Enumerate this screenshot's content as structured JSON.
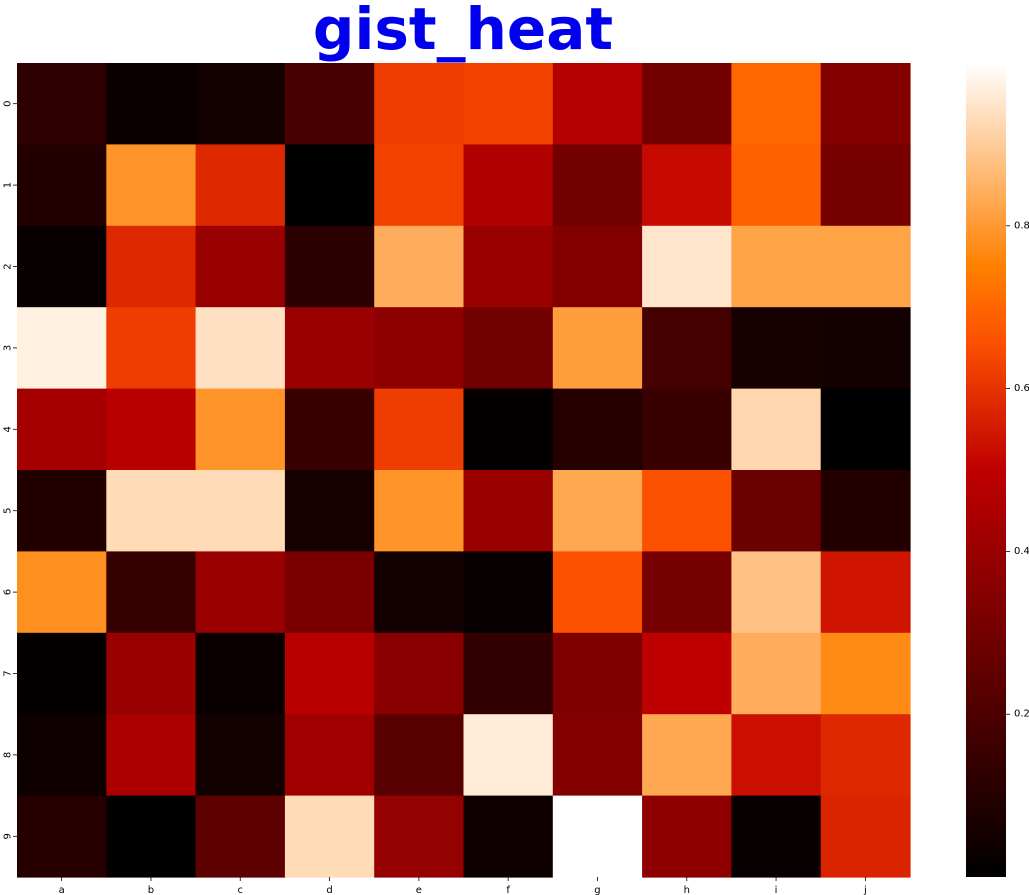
{
  "chart_data": {
    "type": "heatmap",
    "title": "gist_heat",
    "xlabel": "",
    "ylabel": "",
    "colormap": "gist_heat",
    "x_categories": [
      "a",
      "b",
      "c",
      "d",
      "e",
      "f",
      "g",
      "h",
      "i",
      "j"
    ],
    "y_categories": [
      "0",
      "1",
      "2",
      "3",
      "4",
      "5",
      "6",
      "7",
      "8",
      "9"
    ],
    "values": [
      [
        0.12,
        0.03,
        0.05,
        0.19,
        0.62,
        0.63,
        0.47,
        0.3,
        0.7,
        0.34
      ],
      [
        0.09,
        0.79,
        0.58,
        0.0,
        0.63,
        0.46,
        0.3,
        0.52,
        0.69,
        0.31
      ],
      [
        0.02,
        0.58,
        0.4,
        0.11,
        0.84,
        0.4,
        0.34,
        0.95,
        0.82,
        0.82
      ],
      [
        0.97,
        0.62,
        0.94,
        0.4,
        0.37,
        0.3,
        0.81,
        0.18,
        0.06,
        0.05
      ],
      [
        0.43,
        0.48,
        0.79,
        0.15,
        0.62,
        0.01,
        0.1,
        0.15,
        0.92,
        0.0
      ],
      [
        0.09,
        0.93,
        0.93,
        0.06,
        0.79,
        0.4,
        0.83,
        0.66,
        0.28,
        0.09
      ],
      [
        0.78,
        0.14,
        0.4,
        0.32,
        0.05,
        0.02,
        0.66,
        0.31,
        0.88,
        0.54
      ],
      [
        0.01,
        0.4,
        0.03,
        0.48,
        0.36,
        0.13,
        0.33,
        0.5,
        0.84,
        0.77
      ],
      [
        0.04,
        0.45,
        0.05,
        0.42,
        0.23,
        0.96,
        0.34,
        0.83,
        0.53,
        0.58
      ],
      [
        0.1,
        0.0,
        0.24,
        0.93,
        0.39,
        0.04,
        1.0,
        0.37,
        0.02,
        0.57
      ]
    ],
    "vmin": 0.0,
    "vmax": 1.0,
    "colorbar": {
      "ticks": [
        0.2,
        0.4,
        0.6,
        0.8
      ],
      "tick_labels": [
        "0.2",
        "0.4",
        "0.6",
        "0.8"
      ]
    },
    "grid": false,
    "legend": "colorbar-right"
  }
}
